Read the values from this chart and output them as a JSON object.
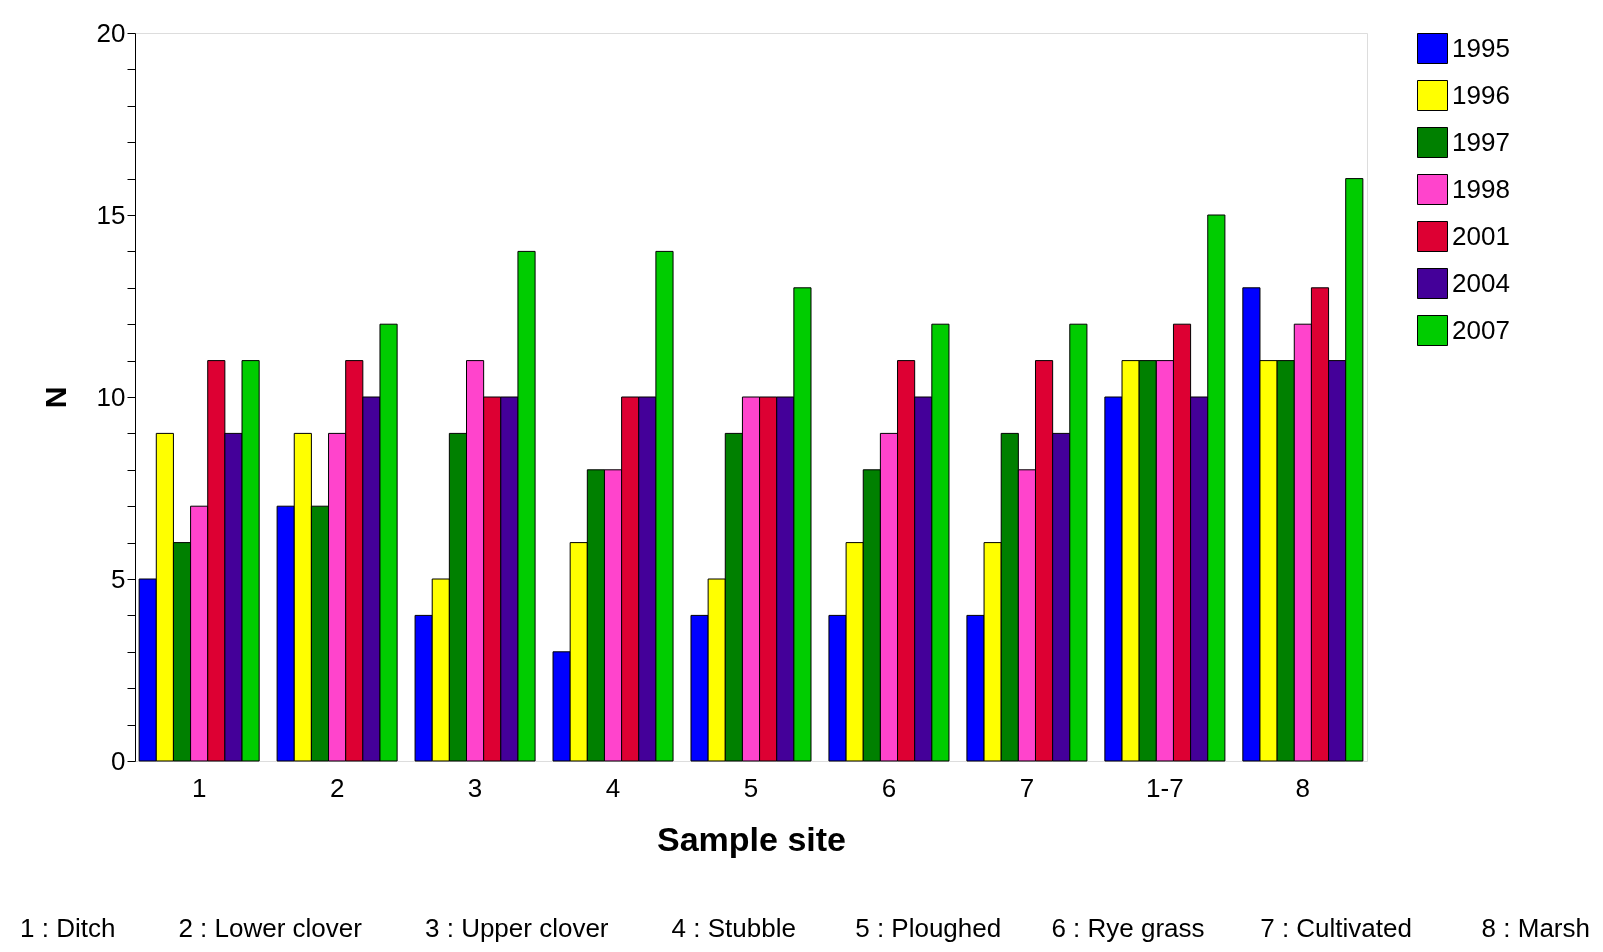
{
  "chart_data": {
    "type": "bar",
    "xlabel": "Sample site",
    "ylabel": "N",
    "categories": [
      "1",
      "2",
      "3",
      "4",
      "5",
      "6",
      "7",
      "1-7",
      "8"
    ],
    "series": [
      {
        "name": "1995",
        "color": "#0000ff",
        "values": [
          5,
          7,
          4,
          3,
          4,
          4,
          4,
          10,
          13
        ]
      },
      {
        "name": "1996",
        "color": "#ffff00",
        "values": [
          9,
          9,
          5,
          6,
          5,
          6,
          6,
          11,
          11
        ]
      },
      {
        "name": "1997",
        "color": "#008000",
        "values": [
          6,
          7,
          9,
          8,
          9,
          8,
          9,
          11,
          11
        ]
      },
      {
        "name": "1998",
        "color": "#ff44cc",
        "values": [
          7,
          9,
          11,
          8,
          10,
          9,
          8,
          11,
          12
        ]
      },
      {
        "name": "2001",
        "color": "#dd0033",
        "values": [
          11,
          11,
          10,
          10,
          10,
          11,
          11,
          12,
          13
        ]
      },
      {
        "name": "2004",
        "color": "#440099",
        "values": [
          9,
          10,
          10,
          10,
          10,
          10,
          9,
          10,
          11
        ]
      },
      {
        "name": "2007",
        "color": "#00cc00",
        "values": [
          11,
          12,
          14,
          14,
          13,
          12,
          12,
          15,
          16
        ]
      }
    ],
    "ylim": [
      0,
      20
    ],
    "yticks": [
      0,
      {
        "value": 1,
        "label": null
      },
      {
        "value": 2,
        "label": null
      },
      {
        "value": 3,
        "label": null
      },
      {
        "value": 4,
        "label": null
      },
      5,
      {
        "value": 6,
        "label": null
      },
      {
        "value": 7,
        "label": null
      },
      {
        "value": 8,
        "label": null
      },
      {
        "value": 9,
        "label": null
      },
      10,
      {
        "value": 11,
        "label": null
      },
      {
        "value": 12,
        "label": null
      },
      {
        "value": 13,
        "label": null
      },
      {
        "value": 14,
        "label": null
      },
      15,
      {
        "value": 16,
        "label": null
      },
      {
        "value": 17,
        "label": null
      },
      {
        "value": 18,
        "label": null
      },
      {
        "value": 19,
        "label": null
      },
      20
    ],
    "grid": false,
    "legend": "right",
    "annotations": [
      "1 : Ditch",
      "2 : Lower clover",
      "3 : Upper clover",
      "4 : Stubble",
      "5 : Ploughed",
      "6 : Rye grass",
      "7 : Cultivated",
      "8 : Marsh"
    ]
  }
}
